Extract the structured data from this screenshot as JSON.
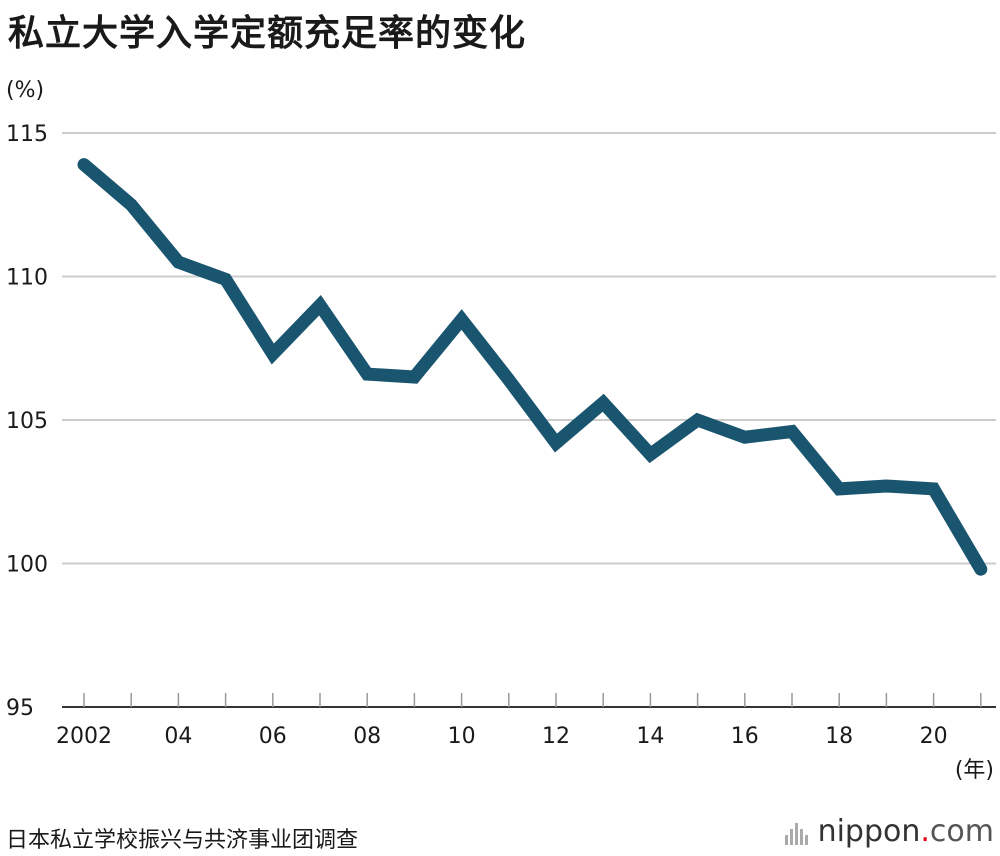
{
  "title": "私立大学入学定额充足率的变化",
  "source": "日本私立学校振兴与共济事业团调查",
  "brand": {
    "name": "nippon",
    "dot": ".",
    "suffix": "com"
  },
  "chart_data": {
    "type": "line",
    "title": "私立大学入学定额充足率的变化",
    "xlabel": "(年)",
    "ylabel": "(%)",
    "ylim": [
      95,
      115
    ],
    "yticks": [
      95,
      100,
      105,
      110,
      115
    ],
    "x": [
      2002,
      2003,
      2004,
      2005,
      2006,
      2007,
      2008,
      2009,
      2010,
      2011,
      2012,
      2013,
      2014,
      2015,
      2016,
      2017,
      2018,
      2019,
      2020,
      2021
    ],
    "xtick_labels": [
      {
        "x": 2002,
        "label": "2002"
      },
      {
        "x": 2004,
        "label": "04"
      },
      {
        "x": 2006,
        "label": "06"
      },
      {
        "x": 2008,
        "label": "08"
      },
      {
        "x": 2010,
        "label": "10"
      },
      {
        "x": 2012,
        "label": "12"
      },
      {
        "x": 2014,
        "label": "14"
      },
      {
        "x": 2016,
        "label": "16"
      },
      {
        "x": 2018,
        "label": "18"
      },
      {
        "x": 2020,
        "label": "20"
      }
    ],
    "series": [
      {
        "values": [
          113.9,
          112.5,
          110.5,
          109.9,
          107.3,
          109.0,
          106.6,
          106.5,
          108.5,
          106.4,
          104.2,
          105.6,
          103.8,
          105.0,
          104.4,
          104.6,
          102.6,
          102.7,
          102.6,
          99.8
        ],
        "color": "#1a5570"
      }
    ],
    "grid": true,
    "gridColor": "#cccccc"
  }
}
